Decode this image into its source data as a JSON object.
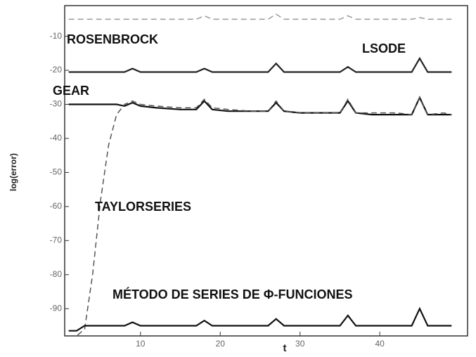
{
  "chart_data": {
    "type": "line",
    "xlabel": "t",
    "ylabel": "log(error)",
    "x": [
      1,
      2,
      3,
      4,
      5,
      6,
      7,
      8,
      9,
      10,
      12,
      15,
      17,
      18,
      19,
      21,
      24,
      26,
      27,
      28,
      30,
      33,
      35,
      36,
      37,
      39,
      42,
      44,
      45,
      46,
      48,
      49
    ],
    "xlim": [
      0.5,
      51
    ],
    "xticks": [
      10,
      20,
      30,
      40
    ],
    "ylim": [
      -98,
      -1
    ],
    "yticks": [
      -10,
      -20,
      -30,
      -40,
      -50,
      -60,
      -70,
      -80,
      -90
    ],
    "series": [
      {
        "name": "ROSENBROCK",
        "color": "#9a9a9a",
        "dashed": true,
        "values": [
          -5,
          -5,
          -5,
          -5,
          -5,
          -5,
          -5,
          -5,
          -5,
          -5,
          -5,
          -5,
          -5,
          -4,
          -5,
          -5,
          -5,
          -5,
          -3.5,
          -5,
          -5,
          -5,
          -5,
          -4,
          -5,
          -5,
          -5,
          -5,
          -4.5,
          -5,
          -5,
          -5
        ]
      },
      {
        "name": "LSODE",
        "color": "#222222",
        "dashed": false,
        "values": [
          -20.5,
          -20.5,
          -20.5,
          -20.5,
          -20.5,
          -20.5,
          -20.5,
          -20.5,
          -19.5,
          -20.5,
          -20.5,
          -20.5,
          -20.5,
          -19.5,
          -20.5,
          -20.5,
          -20.5,
          -20.5,
          -18,
          -20.5,
          -20.5,
          -20.5,
          -20.5,
          -19,
          -20.5,
          -20.5,
          -20.5,
          -20.5,
          -16.5,
          -20.5,
          -20.5,
          -20.5
        ]
      },
      {
        "name": "GEAR",
        "color": "#111111",
        "dashed": false,
        "values": [
          -30,
          -30,
          -30,
          -30,
          -30,
          -30,
          -30,
          -30.5,
          -29.5,
          -30.5,
          -31,
          -31.5,
          -31.5,
          -29,
          -31.5,
          -32,
          -32,
          -32,
          -29.5,
          -32,
          -32.5,
          -32.5,
          -32.5,
          -29,
          -32.5,
          -33,
          -33,
          -33,
          -28,
          -33,
          -33,
          -33
        ]
      },
      {
        "name": "TAYLORSERIES",
        "color": "#555555",
        "dashed": true,
        "values": [
          -98,
          -98,
          -96,
          -80,
          -58,
          -42,
          -33,
          -30,
          -29,
          -30,
          -30.5,
          -31,
          -31,
          -28.5,
          -31,
          -31.5,
          -32,
          -32,
          -29,
          -32,
          -32.5,
          -32.5,
          -32.5,
          -28.5,
          -32.5,
          -32.5,
          -32.5,
          -33,
          -28,
          -33,
          -32.5,
          -33
        ]
      },
      {
        "name": "MÉTODO DE SERIES DE Φ-FUNCIONES",
        "color": "#111111",
        "dashed": false,
        "values": [
          -96.5,
          -96.5,
          -95,
          -95,
          -95,
          -95,
          -95,
          -95,
          -94,
          -95,
          -95,
          -95,
          -95,
          -93.5,
          -95,
          -95,
          -95,
          -95,
          -93,
          -95,
          -95,
          -95,
          -95,
          -92,
          -95,
          -95,
          -95,
          -95,
          -90,
          -95,
          -95,
          -95
        ]
      }
    ]
  }
}
